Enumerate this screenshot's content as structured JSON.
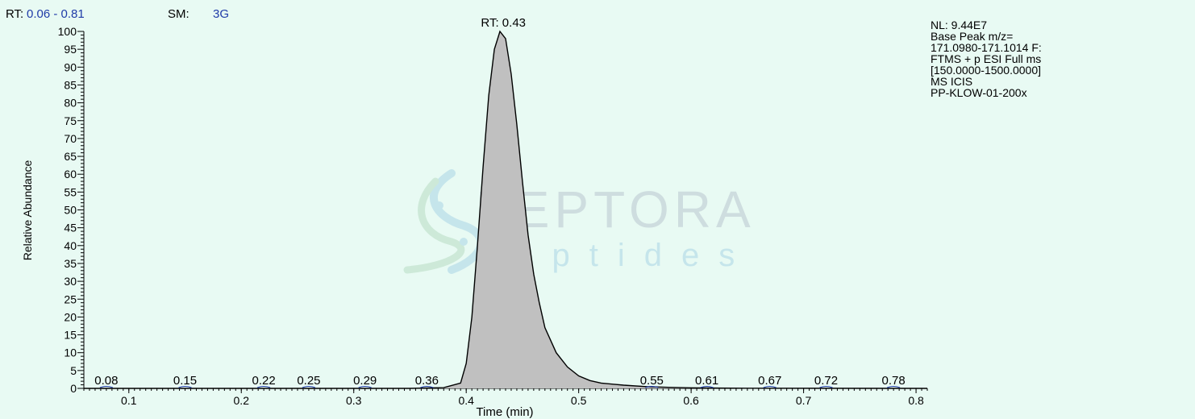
{
  "header": {
    "range_label": "RT:",
    "range_value": "0.06 - 0.81",
    "smooth_label": "SM:",
    "smooth_value": "3G"
  },
  "info": {
    "lines": [
      "NL: 9.44E7",
      "Base Peak m/z=",
      "171.0980-171.1014 F:",
      "FTMS + p ESI Full ms",
      "[150.0000-1500.0000]",
      "MS  ICIS",
      "PP-KLOW-01-200x"
    ]
  },
  "watermark": {
    "brand": "PEPTORA",
    "sub": "peptides"
  },
  "colors": {
    "background": "#e8faf3",
    "trace_fill": "#c0c0c0",
    "trace_line": "#000000",
    "header_value": "#1f3ba8",
    "minor_peak": "#1f3ba8",
    "watermark": "#b9d4e6"
  },
  "chart_data": {
    "type": "area",
    "xlabel": "Time (min)",
    "ylabel": "Relative Abundance",
    "xlim": [
      0.06,
      0.81
    ],
    "ylim": [
      0,
      100
    ],
    "x_ticks": [
      0.1,
      0.2,
      0.3,
      0.4,
      0.5,
      0.6,
      0.7,
      0.8
    ],
    "x_tick_labels": [
      "0.1",
      "0.2",
      "0.3",
      "0.4",
      "0.5",
      "0.6",
      "0.7",
      "0.8"
    ],
    "y_ticks": [
      0,
      5,
      10,
      15,
      20,
      25,
      30,
      35,
      40,
      45,
      50,
      55,
      60,
      65,
      70,
      75,
      80,
      85,
      90,
      95,
      100
    ],
    "y_tick_labels": [
      "0",
      "5",
      "10",
      "15",
      "20",
      "25",
      "30",
      "35",
      "40",
      "45",
      "50",
      "55",
      "60",
      "65",
      "70",
      "75",
      "80",
      "85",
      "90",
      "95",
      "100"
    ],
    "x": [
      0.06,
      0.35,
      0.38,
      0.395,
      0.4,
      0.405,
      0.41,
      0.415,
      0.42,
      0.425,
      0.43,
      0.435,
      0.44,
      0.445,
      0.45,
      0.455,
      0.46,
      0.465,
      0.47,
      0.48,
      0.49,
      0.5,
      0.51,
      0.52,
      0.54,
      0.56,
      0.58,
      0.6,
      0.65,
      0.81
    ],
    "y": [
      0,
      0,
      0.2,
      1.5,
      7,
      20,
      40,
      62,
      82,
      95,
      100,
      98,
      88,
      74,
      58,
      43,
      32,
      24,
      17,
      10,
      6,
      3.5,
      2.2,
      1.5,
      0.9,
      0.5,
      0.3,
      0.15,
      0.05,
      0
    ],
    "peak_label": "RT: 0.43",
    "peak_label_x": 0.433,
    "peak_label_y": 100,
    "minor_labels": [
      {
        "text": "0.08",
        "x": 0.08
      },
      {
        "text": "0.15",
        "x": 0.15
      },
      {
        "text": "0.22",
        "x": 0.22
      },
      {
        "text": "0.25",
        "x": 0.26
      },
      {
        "text": "0.29",
        "x": 0.31
      },
      {
        "text": "0.36",
        "x": 0.365
      },
      {
        "text": "0.55",
        "x": 0.565
      },
      {
        "text": "0.61",
        "x": 0.614
      },
      {
        "text": "0.67",
        "x": 0.67
      },
      {
        "text": "0.72",
        "x": 0.72
      },
      {
        "text": "0.78",
        "x": 0.78
      }
    ]
  }
}
